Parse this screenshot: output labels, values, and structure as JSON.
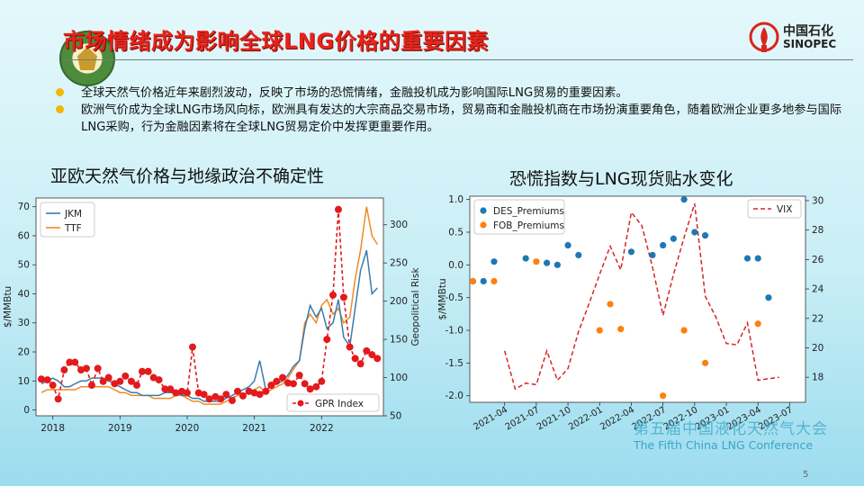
{
  "header": {
    "title": "市场情绪成为影响全球LNG价格的重要因素",
    "sinopec_cn": "中国石化",
    "sinopec_en": "SINOPEC"
  },
  "bullets": [
    {
      "text": "全球天然气价格近年来剧烈波动，反映了市场的恐慌情绪，金融投机成为影响国际LNG贸易的重要因素。"
    },
    {
      "text": "欧洲气价成为全球LNG市场风向标，欧洲具有发达的大宗商品交易市场，贸易商和金融投机商在市场扮演重要角色，随着欧洲企业更多地参与国际LNG采购，行为金融因素将在全球LNG贸易定价中发挥更重要作用。"
    }
  ],
  "left_title": "亚欧天然气价格与地缘政治不确定性",
  "right_title": "恐慌指数与LNG现货贴水变化",
  "footer": {
    "conf_cn": "第五届中国液化天然气大会",
    "conf_en": "The Fifth China LNG Conference",
    "page": "5"
  },
  "colors": {
    "jkm": "#3b7bb0",
    "ttf": "#f08a24",
    "gpr": "#e31a1c",
    "des": "#1f77b4",
    "fob": "#ff7f0e",
    "vix": "#d62728",
    "title": "#e8231a",
    "bullet": "#f2b800"
  },
  "chart_data": [
    {
      "type": "line",
      "ylabel": "$/MMBtu",
      "y2label": "Geopolitical Risk",
      "xlim": [
        2017.75,
        2022.92
      ],
      "ylim": [
        -2,
        73
      ],
      "y2lim": [
        50,
        335
      ],
      "x_ticks": [
        2018,
        2019,
        2020,
        2021,
        2022
      ],
      "x_tick_labels": [
        "2018",
        "2019",
        "2020",
        "2021",
        "2022"
      ],
      "y_ticks": [
        0,
        10,
        20,
        30,
        40,
        50,
        60,
        70
      ],
      "y2_ticks": [
        50,
        100,
        150,
        200,
        250,
        300
      ],
      "legend_left": {
        "position": "upper-left",
        "entries": [
          "JKM",
          "TTF"
        ]
      },
      "legend_right": {
        "position": "lower-right",
        "entries": [
          "GPR Index"
        ]
      },
      "series": [
        {
          "name": "JKM",
          "axis": "left",
          "x": [
            2017.83,
            2017.92,
            2018.0,
            2018.08,
            2018.17,
            2018.25,
            2018.33,
            2018.42,
            2018.5,
            2018.58,
            2018.67,
            2018.75,
            2018.83,
            2018.92,
            2019.0,
            2019.08,
            2019.17,
            2019.25,
            2019.33,
            2019.42,
            2019.5,
            2019.58,
            2019.67,
            2019.75,
            2019.83,
            2019.92,
            2020.0,
            2020.08,
            2020.17,
            2020.25,
            2020.33,
            2020.42,
            2020.5,
            2020.58,
            2020.67,
            2020.75,
            2020.83,
            2020.92,
            2021.0,
            2021.08,
            2021.17,
            2021.25,
            2021.33,
            2021.42,
            2021.5,
            2021.58,
            2021.67,
            2021.75,
            2021.83,
            2021.92,
            2022.0,
            2022.08,
            2022.17,
            2022.25,
            2022.33,
            2022.42,
            2022.5,
            2022.58,
            2022.67,
            2022.75,
            2022.83
          ],
          "y": [
            9,
            10,
            11,
            10,
            8,
            8,
            9,
            10,
            10,
            11,
            11,
            11,
            10,
            9,
            8,
            7,
            6,
            6,
            5,
            5,
            5,
            5,
            6,
            6,
            6,
            5,
            5,
            4,
            4,
            3,
            3,
            3,
            3,
            4,
            5,
            6,
            7,
            8,
            10,
            17,
            7,
            8,
            9,
            10,
            12,
            15,
            17,
            28,
            36,
            32,
            35,
            28,
            30,
            38,
            25,
            22,
            35,
            48,
            55,
            40,
            42
          ]
        },
        {
          "name": "TTF",
          "axis": "left",
          "x": [
            2017.83,
            2017.92,
            2018.0,
            2018.08,
            2018.17,
            2018.25,
            2018.33,
            2018.42,
            2018.5,
            2018.58,
            2018.67,
            2018.75,
            2018.83,
            2018.92,
            2019.0,
            2019.08,
            2019.17,
            2019.25,
            2019.33,
            2019.42,
            2019.5,
            2019.58,
            2019.67,
            2019.75,
            2019.83,
            2019.92,
            2020.0,
            2020.08,
            2020.17,
            2020.25,
            2020.33,
            2020.42,
            2020.5,
            2020.58,
            2020.67,
            2020.75,
            2020.83,
            2020.92,
            2021.0,
            2021.08,
            2021.17,
            2021.25,
            2021.33,
            2021.42,
            2021.5,
            2021.58,
            2021.67,
            2021.75,
            2021.83,
            2021.92,
            2022.0,
            2022.08,
            2022.17,
            2022.25,
            2022.33,
            2022.42,
            2022.5,
            2022.58,
            2022.67,
            2022.75,
            2022.83
          ],
          "y": [
            6,
            7,
            7,
            7,
            7,
            7,
            7,
            8,
            8,
            8,
            8,
            8,
            8,
            7,
            6,
            6,
            5,
            5,
            5,
            5,
            4,
            4,
            4,
            4,
            5,
            5,
            4,
            3,
            3,
            2,
            2,
            2,
            2,
            3,
            4,
            5,
            5,
            6,
            7,
            8,
            6,
            7,
            8,
            9,
            11,
            14,
            17,
            30,
            33,
            30,
            36,
            38,
            33,
            35,
            30,
            32,
            45,
            55,
            70,
            60,
            57
          ]
        },
        {
          "name": "GPR Index",
          "axis": "right",
          "style": "dashed-markers",
          "x": [
            2017.83,
            2017.92,
            2018.0,
            2018.08,
            2018.17,
            2018.25,
            2018.33,
            2018.42,
            2018.5,
            2018.58,
            2018.67,
            2018.75,
            2018.83,
            2018.92,
            2019.0,
            2019.08,
            2019.17,
            2019.25,
            2019.33,
            2019.42,
            2019.5,
            2019.58,
            2019.67,
            2019.75,
            2019.83,
            2019.92,
            2020.0,
            2020.08,
            2020.17,
            2020.25,
            2020.33,
            2020.42,
            2020.5,
            2020.58,
            2020.67,
            2020.75,
            2020.83,
            2020.92,
            2021.0,
            2021.08,
            2021.17,
            2021.25,
            2021.33,
            2021.42,
            2021.5,
            2021.58,
            2021.67,
            2021.75,
            2021.83,
            2021.92,
            2022.0,
            2022.08,
            2022.17,
            2022.25,
            2022.33,
            2022.42,
            2022.5,
            2022.58,
            2022.67,
            2022.75,
            2022.83
          ],
          "y": [
            98,
            97,
            90,
            72,
            110,
            120,
            120,
            110,
            112,
            90,
            112,
            95,
            100,
            92,
            95,
            102,
            95,
            90,
            108,
            108,
            100,
            97,
            85,
            85,
            80,
            82,
            80,
            140,
            80,
            78,
            72,
            75,
            72,
            78,
            70,
            82,
            76,
            82,
            80,
            78,
            82,
            90,
            95,
            100,
            93,
            92,
            103,
            92,
            85,
            88,
            95,
            150,
            208,
            320,
            205,
            140,
            125,
            118,
            135,
            130,
            125
          ]
        }
      ]
    },
    {
      "type": "scatter",
      "ylabel": "$/MMBtu",
      "y2label": "",
      "ylim": [
        -2.1,
        1.05
      ],
      "y2lim": [
        16.3,
        30.3
      ],
      "y_ticks": [
        1.0,
        0.5,
        0.0,
        -0.5,
        -1.0,
        -1.5,
        -2.0
      ],
      "y2_ticks": [
        30,
        28,
        26,
        24,
        22,
        20,
        18
      ],
      "x_tick_labels": [
        "2021-04",
        "2021-07",
        "2021-10",
        "2022-01",
        "2022-04",
        "2022-07",
        "2022-10",
        "2023-01",
        "2023-04",
        "2023-07"
      ],
      "x_tick_months": [
        3,
        6,
        9,
        12,
        15,
        18,
        21,
        24,
        27,
        30
      ],
      "xlim": [
        -0.3,
        31.5
      ],
      "legend_left": {
        "position": "upper-left",
        "entries": [
          "DES_Premiums",
          "FOB_Premiums"
        ]
      },
      "legend_right": {
        "position": "upper-right",
        "entries": [
          "VIX"
        ]
      },
      "series": [
        {
          "name": "DES_Premiums",
          "axis": "left",
          "x": [
            0,
            1,
            2,
            5,
            7,
            8,
            9,
            10,
            15,
            17,
            18,
            19,
            20,
            21,
            22,
            26,
            27,
            28
          ],
          "y": [
            -0.25,
            -0.25,
            0.05,
            0.1,
            0.03,
            0.0,
            0.3,
            0.15,
            0.2,
            0.15,
            0.3,
            0.4,
            1.0,
            0.5,
            0.45,
            0.1,
            0.1,
            -0.5
          ]
        },
        {
          "name": "FOB_Premiums",
          "axis": "left",
          "x": [
            0,
            2,
            6,
            12,
            13,
            14,
            18,
            20,
            22,
            27
          ],
          "y": [
            -0.25,
            -0.25,
            0.05,
            -1.0,
            -0.6,
            -0.98,
            -2.0,
            -1.0,
            -1.5,
            -0.9
          ]
        },
        {
          "name": "VIX",
          "axis": "right",
          "style": "dashed",
          "x": [
            3,
            4,
            5,
            6,
            7,
            8,
            9,
            10,
            11,
            12,
            13,
            14,
            15,
            16,
            17,
            18,
            19,
            20,
            21,
            22,
            23,
            24,
            25,
            26,
            27,
            28,
            29
          ],
          "y": [
            19.8,
            17.2,
            17.6,
            17.5,
            19.8,
            17.8,
            18.6,
            21.1,
            23.0,
            25.0,
            26.9,
            25.3,
            29.2,
            28.3,
            25.5,
            22.2,
            25.0,
            27.5,
            29.8,
            23.5,
            22.1,
            20.3,
            20.2,
            21.7,
            17.8,
            17.9,
            18.0
          ]
        }
      ]
    }
  ]
}
